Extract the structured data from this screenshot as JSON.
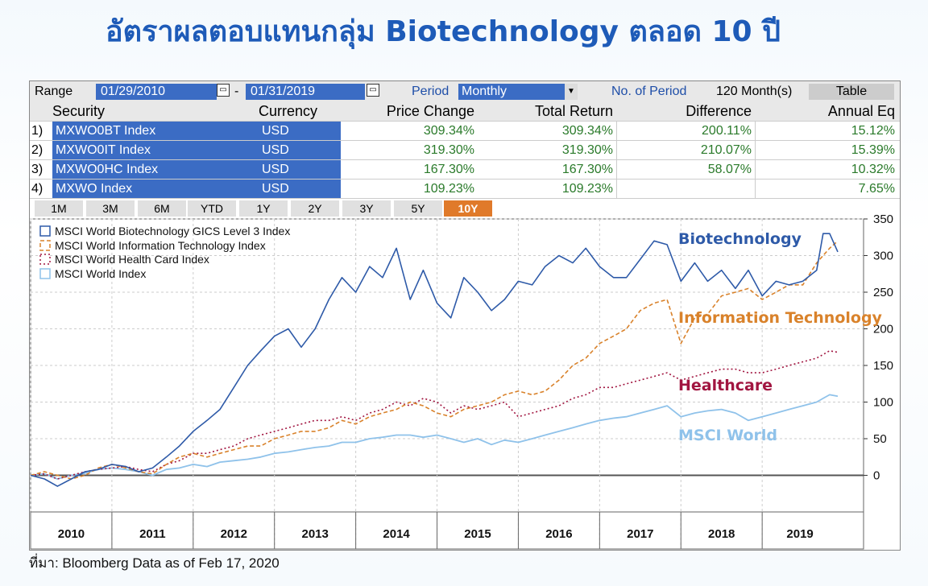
{
  "title": "อัตราผลตอบแทนกลุ่ม Biotechnology ตลอด 10 ปี",
  "source": "ที่มา: Bloomberg Data as of Feb 17, 2020",
  "toolbar": {
    "range_label": "Range",
    "start": "01/29/2010",
    "dash": "-",
    "end": "01/31/2019",
    "period_label": "Period",
    "period_value": "Monthly",
    "no_period_label": "No. of Period",
    "no_period_value": "120 Month(s)",
    "table_label": "Table"
  },
  "table": {
    "headers": [
      "Security",
      "Currency",
      "Price Change",
      "Total Return",
      "Difference",
      "Annual Eq"
    ],
    "rows": [
      {
        "idx": "1)",
        "security": "MXWO0BT Index",
        "currency": "USD",
        "price_change": "309.34%",
        "total_return": "309.34%",
        "difference": "200.11%",
        "annual": "15.12%"
      },
      {
        "idx": "2)",
        "security": "MXWO0IT Index",
        "currency": "USD",
        "price_change": "319.30%",
        "total_return": "319.30%",
        "difference": "210.07%",
        "annual": "15.39%"
      },
      {
        "idx": "3)",
        "security": "MXWO0HC Index",
        "currency": "USD",
        "price_change": "167.30%",
        "total_return": "167.30%",
        "difference": "58.07%",
        "annual": "10.32%"
      },
      {
        "idx": "4)",
        "security": "MXWO Index",
        "currency": "USD",
        "price_change": "109.23%",
        "total_return": "109.23%",
        "difference": "",
        "annual": "7.65%"
      }
    ]
  },
  "range_buttons": [
    "1M",
    "3M",
    "6M",
    "YTD",
    "1Y",
    "2Y",
    "3Y",
    "5Y",
    "10Y"
  ],
  "active_range": "10Y",
  "colors": {
    "bio": "#2e5aa8",
    "it": "#d9822b",
    "hc": "#a11540",
    "world": "#8fc2ea"
  },
  "chart_data": {
    "type": "line",
    "ylim": [
      -50,
      350
    ],
    "yticks": [
      0,
      50,
      100,
      150,
      200,
      250,
      300,
      350
    ],
    "xticks": [
      "2010",
      "2011",
      "2012",
      "2013",
      "2014",
      "2015",
      "2016",
      "2017",
      "2018",
      "2019"
    ],
    "xrange": [
      2010,
      2019.93
    ],
    "legend": [
      "MSCI World Biotechnology GICS Level 3 Index",
      "MSCI World Information Technology Index",
      "MSCI World Health Card Index",
      "MSCI World Index"
    ],
    "annotations": [
      "Biotechnology",
      "Information Technology",
      "Healthcare",
      "MSCI World"
    ],
    "series": [
      {
        "name": "MSCI World Biotechnology GICS Level 3 Index",
        "x": [
          2010,
          2010.17,
          2010.33,
          2010.5,
          2010.67,
          2010.83,
          2011,
          2011.17,
          2011.33,
          2011.5,
          2011.67,
          2011.83,
          2012,
          2012.17,
          2012.33,
          2012.5,
          2012.67,
          2012.83,
          2013,
          2013.17,
          2013.33,
          2013.5,
          2013.67,
          2013.83,
          2014,
          2014.17,
          2014.33,
          2014.5,
          2014.67,
          2014.83,
          2015,
          2015.17,
          2015.33,
          2015.5,
          2015.67,
          2015.83,
          2016,
          2016.17,
          2016.33,
          2016.5,
          2016.67,
          2016.83,
          2017,
          2017.17,
          2017.33,
          2017.5,
          2017.67,
          2017.83,
          2018,
          2018.17,
          2018.33,
          2018.5,
          2018.67,
          2018.83,
          2019,
          2019.17,
          2019.33,
          2019.5,
          2019.67,
          2019.75,
          2019.83,
          2019.93
        ],
        "y": [
          0,
          -5,
          -15,
          -5,
          5,
          8,
          15,
          12,
          5,
          10,
          25,
          40,
          60,
          75,
          90,
          120,
          150,
          170,
          190,
          200,
          175,
          200,
          240,
          270,
          250,
          285,
          270,
          310,
          240,
          280,
          235,
          215,
          270,
          250,
          225,
          240,
          265,
          260,
          285,
          300,
          290,
          310,
          285,
          270,
          270,
          295,
          320,
          315,
          265,
          290,
          265,
          280,
          255,
          280,
          245,
          265,
          260,
          265,
          280,
          330,
          330,
          305
        ]
      },
      {
        "name": "MSCI World Information Technology Index",
        "x": [
          2010,
          2010.17,
          2010.33,
          2010.5,
          2010.67,
          2010.83,
          2011,
          2011.17,
          2011.33,
          2011.5,
          2011.67,
          2011.83,
          2012,
          2012.17,
          2012.33,
          2012.5,
          2012.67,
          2012.83,
          2013,
          2013.17,
          2013.33,
          2013.5,
          2013.67,
          2013.83,
          2014,
          2014.17,
          2014.33,
          2014.5,
          2014.67,
          2014.83,
          2015,
          2015.17,
          2015.33,
          2015.5,
          2015.67,
          2015.83,
          2016,
          2016.17,
          2016.33,
          2016.5,
          2016.67,
          2016.83,
          2017,
          2017.17,
          2017.33,
          2017.5,
          2017.67,
          2017.83,
          2018,
          2018.17,
          2018.33,
          2018.5,
          2018.67,
          2018.83,
          2019,
          2019.17,
          2019.33,
          2019.5,
          2019.67,
          2019.75,
          2019.83,
          2019.93
        ],
        "y": [
          0,
          5,
          0,
          -5,
          0,
          10,
          15,
          10,
          5,
          2,
          15,
          25,
          30,
          25,
          30,
          35,
          40,
          40,
          50,
          55,
          60,
          60,
          65,
          75,
          70,
          80,
          85,
          90,
          100,
          95,
          85,
          80,
          90,
          95,
          100,
          110,
          115,
          110,
          115,
          130,
          150,
          160,
          180,
          190,
          200,
          225,
          235,
          240,
          180,
          215,
          220,
          245,
          250,
          255,
          240,
          250,
          260,
          260,
          290,
          300,
          310,
          320
        ]
      },
      {
        "name": "MSCI World Health Card Index",
        "x": [
          2010,
          2010.17,
          2010.33,
          2010.5,
          2010.67,
          2010.83,
          2011,
          2011.17,
          2011.33,
          2011.5,
          2011.67,
          2011.83,
          2012,
          2012.17,
          2012.33,
          2012.5,
          2012.67,
          2012.83,
          2013,
          2013.17,
          2013.33,
          2013.5,
          2013.67,
          2013.83,
          2014,
          2014.17,
          2014.33,
          2014.5,
          2014.67,
          2014.83,
          2015,
          2015.17,
          2015.33,
          2015.5,
          2015.67,
          2015.83,
          2016,
          2016.17,
          2016.33,
          2016.5,
          2016.67,
          2016.83,
          2017,
          2017.17,
          2017.33,
          2017.5,
          2017.67,
          2017.83,
          2018,
          2018.17,
          2018.33,
          2018.5,
          2018.67,
          2018.83,
          2019,
          2019.17,
          2019.33,
          2019.5,
          2019.67,
          2019.75,
          2019.83,
          2019.93
        ],
        "y": [
          0,
          2,
          -5,
          0,
          5,
          8,
          10,
          12,
          8,
          5,
          15,
          20,
          30,
          30,
          35,
          40,
          50,
          55,
          60,
          65,
          70,
          75,
          75,
          80,
          75,
          85,
          90,
          100,
          95,
          105,
          100,
          85,
          95,
          90,
          95,
          100,
          80,
          85,
          90,
          95,
          105,
          110,
          120,
          120,
          125,
          130,
          135,
          140,
          130,
          135,
          140,
          145,
          145,
          140,
          140,
          145,
          150,
          155,
          160,
          165,
          170,
          168
        ]
      },
      {
        "name": "MSCI World Index",
        "x": [
          2010,
          2010.17,
          2010.33,
          2010.5,
          2010.67,
          2010.83,
          2011,
          2011.17,
          2011.33,
          2011.5,
          2011.67,
          2011.83,
          2012,
          2012.17,
          2012.33,
          2012.5,
          2012.67,
          2012.83,
          2013,
          2013.17,
          2013.33,
          2013.5,
          2013.67,
          2013.83,
          2014,
          2014.17,
          2014.33,
          2014.5,
          2014.67,
          2014.83,
          2015,
          2015.17,
          2015.33,
          2015.5,
          2015.67,
          2015.83,
          2016,
          2016.17,
          2016.33,
          2016.5,
          2016.67,
          2016.83,
          2017,
          2017.17,
          2017.33,
          2017.5,
          2017.67,
          2017.83,
          2018,
          2018.17,
          2018.33,
          2018.5,
          2018.67,
          2018.83,
          2019,
          2019.17,
          2019.33,
          2019.5,
          2019.67,
          2019.75,
          2019.83,
          2019.93
        ],
        "y": [
          0,
          2,
          -5,
          0,
          3,
          8,
          10,
          8,
          5,
          0,
          8,
          10,
          15,
          12,
          18,
          20,
          22,
          25,
          30,
          32,
          35,
          38,
          40,
          45,
          45,
          50,
          52,
          55,
          55,
          52,
          55,
          50,
          45,
          50,
          42,
          48,
          45,
          50,
          55,
          60,
          65,
          70,
          75,
          78,
          80,
          85,
          90,
          95,
          80,
          85,
          88,
          90,
          85,
          75,
          80,
          85,
          90,
          95,
          100,
          105,
          110,
          108
        ]
      }
    ]
  }
}
